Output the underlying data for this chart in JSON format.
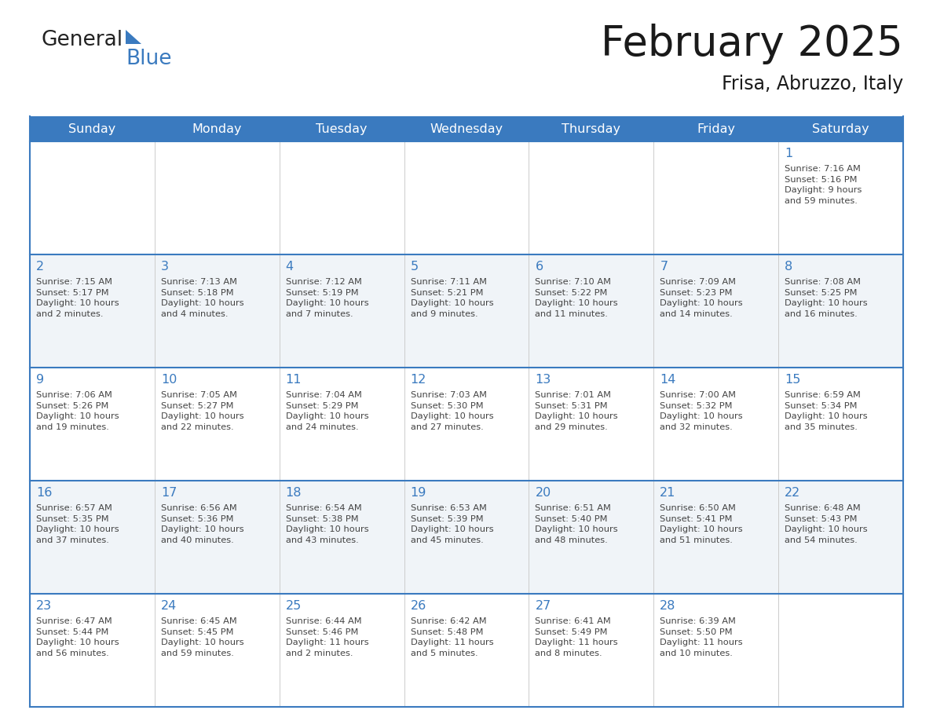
{
  "title": "February 2025",
  "subtitle": "Frisa, Abruzzo, Italy",
  "header_color": "#3a7abf",
  "header_text_color": "#ffffff",
  "cell_bg_even": "#f0f4f8",
  "cell_bg_odd": "#ffffff",
  "day_number_color": "#3a7abf",
  "text_color": "#444444",
  "line_color": "#3a7abf",
  "logo_text_color": "#222222",
  "logo_blue_color": "#3a7abf",
  "days_of_week": [
    "Sunday",
    "Monday",
    "Tuesday",
    "Wednesday",
    "Thursday",
    "Friday",
    "Saturday"
  ],
  "weeks": [
    [
      {
        "day": null,
        "info": null
      },
      {
        "day": null,
        "info": null
      },
      {
        "day": null,
        "info": null
      },
      {
        "day": null,
        "info": null
      },
      {
        "day": null,
        "info": null
      },
      {
        "day": null,
        "info": null
      },
      {
        "day": 1,
        "info": "Sunrise: 7:16 AM\nSunset: 5:16 PM\nDaylight: 9 hours\nand 59 minutes."
      }
    ],
    [
      {
        "day": 2,
        "info": "Sunrise: 7:15 AM\nSunset: 5:17 PM\nDaylight: 10 hours\nand 2 minutes."
      },
      {
        "day": 3,
        "info": "Sunrise: 7:13 AM\nSunset: 5:18 PM\nDaylight: 10 hours\nand 4 minutes."
      },
      {
        "day": 4,
        "info": "Sunrise: 7:12 AM\nSunset: 5:19 PM\nDaylight: 10 hours\nand 7 minutes."
      },
      {
        "day": 5,
        "info": "Sunrise: 7:11 AM\nSunset: 5:21 PM\nDaylight: 10 hours\nand 9 minutes."
      },
      {
        "day": 6,
        "info": "Sunrise: 7:10 AM\nSunset: 5:22 PM\nDaylight: 10 hours\nand 11 minutes."
      },
      {
        "day": 7,
        "info": "Sunrise: 7:09 AM\nSunset: 5:23 PM\nDaylight: 10 hours\nand 14 minutes."
      },
      {
        "day": 8,
        "info": "Sunrise: 7:08 AM\nSunset: 5:25 PM\nDaylight: 10 hours\nand 16 minutes."
      }
    ],
    [
      {
        "day": 9,
        "info": "Sunrise: 7:06 AM\nSunset: 5:26 PM\nDaylight: 10 hours\nand 19 minutes."
      },
      {
        "day": 10,
        "info": "Sunrise: 7:05 AM\nSunset: 5:27 PM\nDaylight: 10 hours\nand 22 minutes."
      },
      {
        "day": 11,
        "info": "Sunrise: 7:04 AM\nSunset: 5:29 PM\nDaylight: 10 hours\nand 24 minutes."
      },
      {
        "day": 12,
        "info": "Sunrise: 7:03 AM\nSunset: 5:30 PM\nDaylight: 10 hours\nand 27 minutes."
      },
      {
        "day": 13,
        "info": "Sunrise: 7:01 AM\nSunset: 5:31 PM\nDaylight: 10 hours\nand 29 minutes."
      },
      {
        "day": 14,
        "info": "Sunrise: 7:00 AM\nSunset: 5:32 PM\nDaylight: 10 hours\nand 32 minutes."
      },
      {
        "day": 15,
        "info": "Sunrise: 6:59 AM\nSunset: 5:34 PM\nDaylight: 10 hours\nand 35 minutes."
      }
    ],
    [
      {
        "day": 16,
        "info": "Sunrise: 6:57 AM\nSunset: 5:35 PM\nDaylight: 10 hours\nand 37 minutes."
      },
      {
        "day": 17,
        "info": "Sunrise: 6:56 AM\nSunset: 5:36 PM\nDaylight: 10 hours\nand 40 minutes."
      },
      {
        "day": 18,
        "info": "Sunrise: 6:54 AM\nSunset: 5:38 PM\nDaylight: 10 hours\nand 43 minutes."
      },
      {
        "day": 19,
        "info": "Sunrise: 6:53 AM\nSunset: 5:39 PM\nDaylight: 10 hours\nand 45 minutes."
      },
      {
        "day": 20,
        "info": "Sunrise: 6:51 AM\nSunset: 5:40 PM\nDaylight: 10 hours\nand 48 minutes."
      },
      {
        "day": 21,
        "info": "Sunrise: 6:50 AM\nSunset: 5:41 PM\nDaylight: 10 hours\nand 51 minutes."
      },
      {
        "day": 22,
        "info": "Sunrise: 6:48 AM\nSunset: 5:43 PM\nDaylight: 10 hours\nand 54 minutes."
      }
    ],
    [
      {
        "day": 23,
        "info": "Sunrise: 6:47 AM\nSunset: 5:44 PM\nDaylight: 10 hours\nand 56 minutes."
      },
      {
        "day": 24,
        "info": "Sunrise: 6:45 AM\nSunset: 5:45 PM\nDaylight: 10 hours\nand 59 minutes."
      },
      {
        "day": 25,
        "info": "Sunrise: 6:44 AM\nSunset: 5:46 PM\nDaylight: 11 hours\nand 2 minutes."
      },
      {
        "day": 26,
        "info": "Sunrise: 6:42 AM\nSunset: 5:48 PM\nDaylight: 11 hours\nand 5 minutes."
      },
      {
        "day": 27,
        "info": "Sunrise: 6:41 AM\nSunset: 5:49 PM\nDaylight: 11 hours\nand 8 minutes."
      },
      {
        "day": 28,
        "info": "Sunrise: 6:39 AM\nSunset: 5:50 PM\nDaylight: 11 hours\nand 10 minutes."
      },
      {
        "day": null,
        "info": null
      }
    ]
  ]
}
